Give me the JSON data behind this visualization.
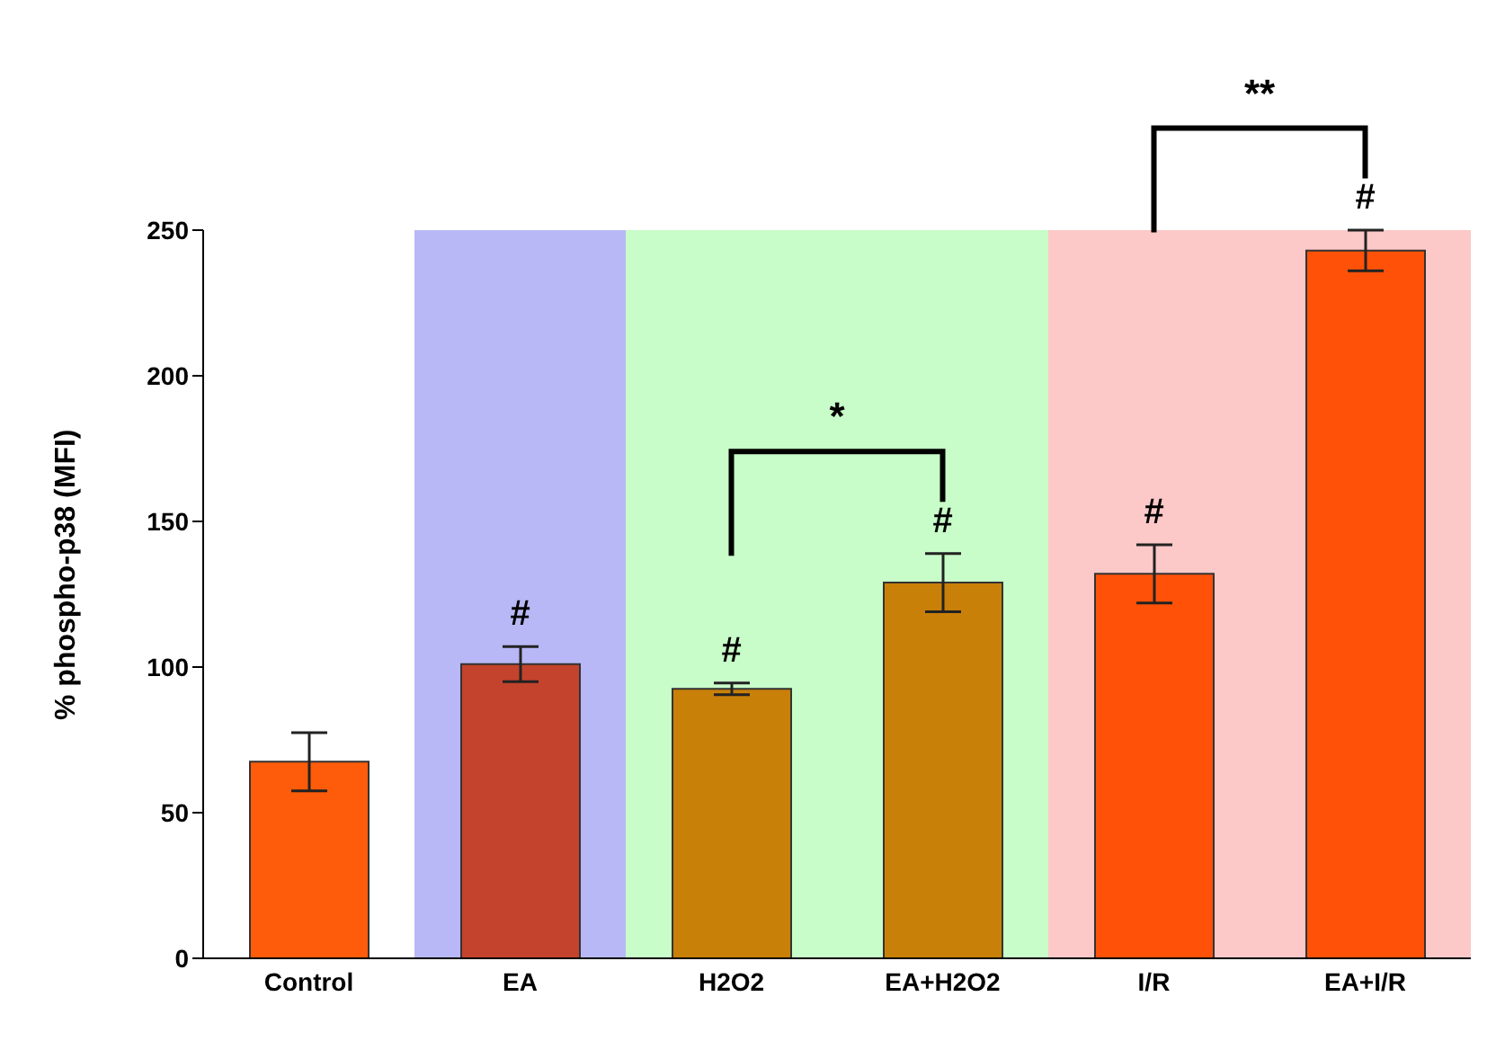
{
  "chart_data": {
    "type": "bar",
    "ylabel": "% phospho-p38 (MFI)",
    "categories": [
      "Control",
      "EA",
      "H2O2",
      "EA+H2O2",
      "I/R",
      "EA+I/R"
    ],
    "values": [
      67.5,
      101,
      92.5,
      129,
      132,
      243
    ],
    "errors": [
      10,
      6,
      2,
      10,
      10,
      7
    ],
    "colors": [
      "#fe5c0a",
      "#c4432c",
      "#c98008",
      "#c98008",
      "#ff5208",
      "#ff5208"
    ],
    "ylim": [
      0,
      250
    ],
    "yticks": [
      0,
      50,
      100,
      150,
      200,
      250
    ],
    "grid": false,
    "legend": false,
    "bands": [
      {
        "axis": "x",
        "from": "EA",
        "to": "EA",
        "color": "#b8b8f6"
      },
      {
        "axis": "x",
        "from": "H2O2",
        "to": "EA+H2O2",
        "color": "#c8fcc8"
      },
      {
        "axis": "x",
        "from": "I/R",
        "to": "EA+I/R",
        "color": "#fcc8c8"
      }
    ],
    "annotations": [
      "#",
      "#",
      "#",
      "#",
      "#",
      "*",
      "**"
    ]
  }
}
